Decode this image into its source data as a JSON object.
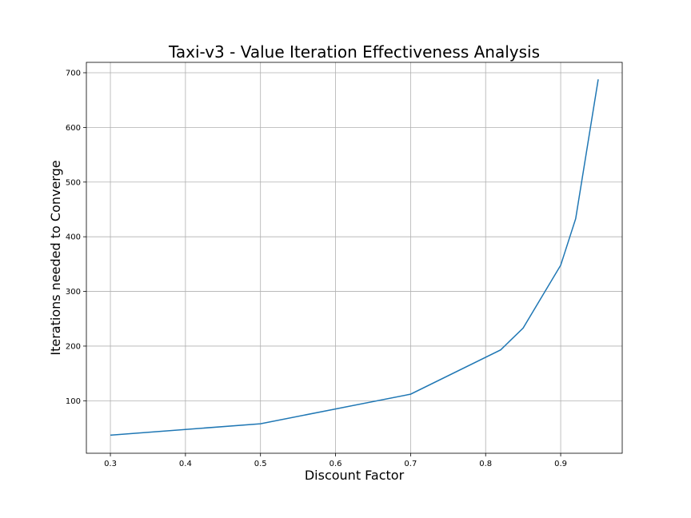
{
  "chart_data": {
    "type": "line",
    "title": "Taxi-v3 - Value Iteration Effectiveness Analysis",
    "xlabel": "Discount Factor",
    "ylabel": "Iterations needed to Converge",
    "xlim": [
      0.268,
      0.982
    ],
    "ylim": [
      4,
      719
    ],
    "xticks": [
      0.3,
      0.4,
      0.5,
      0.6,
      0.7,
      0.8,
      0.9
    ],
    "xtick_labels": [
      "0.3",
      "0.4",
      "0.5",
      "0.6",
      "0.7",
      "0.8",
      "0.9"
    ],
    "yticks": [
      100,
      200,
      300,
      400,
      500,
      600,
      700
    ],
    "ytick_labels": [
      "100",
      "200",
      "300",
      "400",
      "500",
      "600",
      "700"
    ],
    "grid": true,
    "series": [
      {
        "color": "#1f77b4",
        "x": [
          0.3,
          0.5,
          0.6,
          0.7,
          0.82,
          0.85,
          0.9,
          0.92,
          0.95
        ],
        "y": [
          37,
          58,
          85,
          112,
          193,
          233,
          348,
          433,
          688
        ]
      }
    ]
  }
}
